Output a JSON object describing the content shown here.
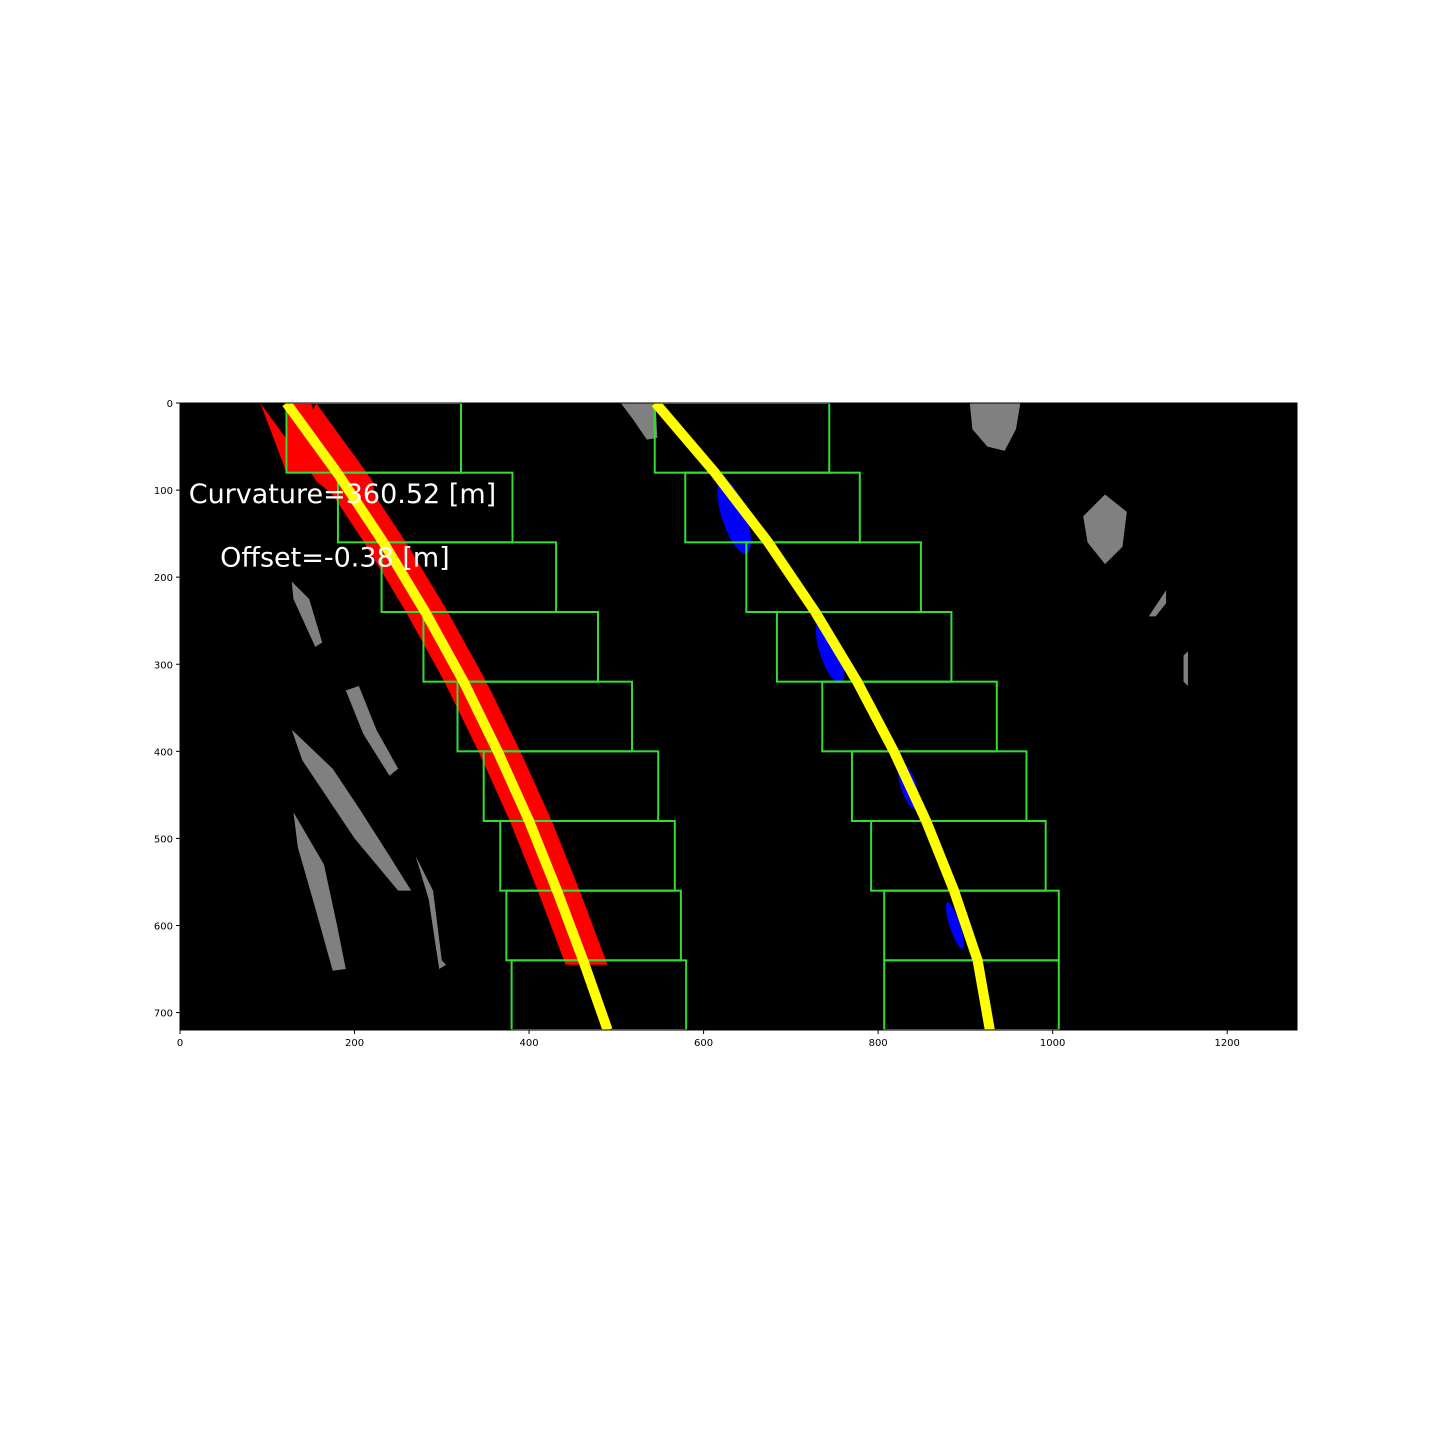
{
  "chart_data": {
    "type": "image",
    "title": "",
    "xlabel": "",
    "ylabel": "",
    "xlim": [
      0,
      1280
    ],
    "ylim": [
      720,
      0
    ],
    "x_ticks": [
      0,
      200,
      400,
      600,
      800,
      1000,
      1200
    ],
    "y_ticks": [
      0,
      100,
      200,
      300,
      400,
      500,
      600,
      700
    ],
    "annotations": [
      {
        "text": "Curvature=360.52 [m]",
        "x": 10,
        "y": 115
      },
      {
        "text": "Offset=-0.38 [m]",
        "x": 46,
        "y": 188
      }
    ],
    "colors": {
      "background": "#000000",
      "left_lane_pixels": "#ff0000",
      "right_lane_pixels": "#0000ff",
      "fit_line": "#ffff00",
      "search_windows": "#33dd33",
      "other_pixels": "#808080"
    },
    "window_height": 80,
    "left_windows_x": [
      [
        122,
        322
      ],
      [
        181,
        381
      ],
      [
        231,
        431
      ],
      [
        279,
        479
      ],
      [
        318,
        518
      ],
      [
        348,
        548
      ],
      [
        367,
        567
      ],
      [
        374,
        574
      ],
      [
        380,
        580
      ]
    ],
    "right_windows_x": [
      [
        544,
        744
      ],
      [
        579,
        779
      ],
      [
        649,
        849
      ],
      [
        684,
        884
      ],
      [
        736,
        936
      ],
      [
        770,
        970
      ],
      [
        792,
        992
      ],
      [
        807,
        1007
      ],
      [
        807,
        1007
      ]
    ],
    "left_fit": {
      "y": [
        0,
        80,
        160,
        240,
        320,
        400,
        480,
        560,
        640,
        720
      ],
      "x": [
        122,
        180,
        233,
        281,
        325,
        364,
        400,
        432,
        462,
        490
      ]
    },
    "right_fit": {
      "y": [
        0,
        80,
        160,
        240,
        320,
        400,
        480,
        560,
        640,
        720
      ],
      "x": [
        545,
        613,
        674,
        728,
        776,
        818,
        855,
        887,
        914,
        928
      ]
    }
  }
}
